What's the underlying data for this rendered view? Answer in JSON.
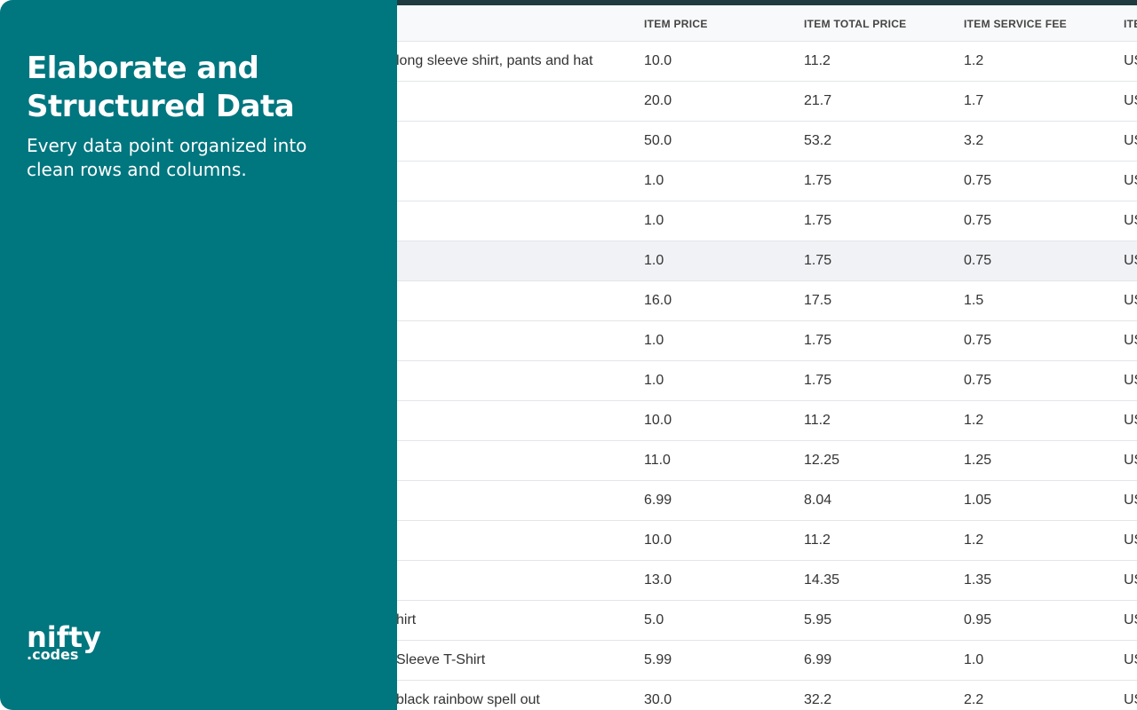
{
  "panel": {
    "title": "Elaborate and Structured Data",
    "subtitle": "Every data point organized into clean rows and columns.",
    "logo": {
      "name": "nifty",
      "suffix": ".codes"
    }
  },
  "table": {
    "headers": [
      "ITEM PRICE",
      "ITEM TOTAL PRICE",
      "ITEM SERVICE FEE",
      "ITE"
    ],
    "rows": [
      {
        "item": "long sleeve shirt, pants and hat",
        "cells": [
          "10.0",
          "11.2",
          "1.2",
          "US"
        ]
      },
      {
        "cells": [
          "20.0",
          "21.7",
          "1.7",
          "US"
        ]
      },
      {
        "cells": [
          "50.0",
          "53.2",
          "3.2",
          "US"
        ]
      },
      {
        "cells": [
          "1.0",
          "1.75",
          "0.75",
          "US"
        ]
      },
      {
        "cells": [
          "1.0",
          "1.75",
          "0.75",
          "US"
        ]
      },
      {
        "cells": [
          "1.0",
          "1.75",
          "0.75",
          "US"
        ]
      },
      {
        "cells": [
          "16.0",
          "17.5",
          "1.5",
          "US"
        ]
      },
      {
        "cells": [
          "1.0",
          "1.75",
          "0.75",
          "US"
        ]
      },
      {
        "cells": [
          "1.0",
          "1.75",
          "0.75",
          "US"
        ]
      },
      {
        "cells": [
          "10.0",
          "11.2",
          "1.2",
          "US"
        ]
      },
      {
        "cells": [
          "11.0",
          "12.25",
          "1.25",
          "US"
        ]
      },
      {
        "cells": [
          "6.99",
          "8.04",
          "1.05",
          "US"
        ]
      },
      {
        "cells": [
          "10.0",
          "11.2",
          "1.2",
          "US"
        ]
      },
      {
        "cells": [
          "13.0",
          "14.35",
          "1.35",
          "US"
        ]
      },
      {
        "item": "hirt",
        "cells": [
          "5.0",
          "5.95",
          "0.95",
          "US"
        ]
      },
      {
        "item": "Sleeve T-Shirt",
        "cells": [
          "5.99",
          "6.99",
          "1.0",
          "US"
        ]
      },
      {
        "item": "black rainbow spell out",
        "cells": [
          "30.0",
          "32.2",
          "2.2",
          "US"
        ]
      }
    ]
  }
}
